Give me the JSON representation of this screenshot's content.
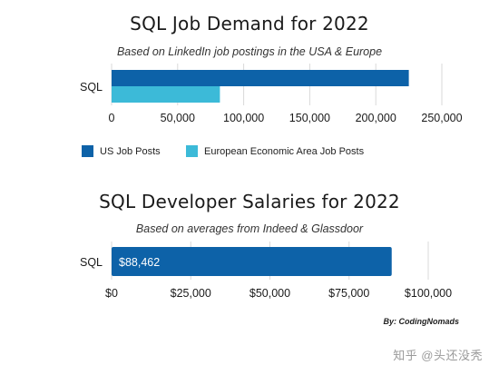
{
  "colors": {
    "us": "#0d62a8",
    "eea": "#3cbad8",
    "grid": "#d9d9d9"
  },
  "chart_data": [
    {
      "type": "bar",
      "orientation": "horizontal",
      "title": "SQL Job Demand for 2022",
      "subtitle": "Based on LinkedIn job postings in the USA & Europe",
      "categories": [
        "SQL"
      ],
      "series": [
        {
          "name": "US Job Posts",
          "values": [
            225000
          ]
        },
        {
          "name": "European Economic Area Job Posts",
          "values": [
            82000
          ]
        }
      ],
      "xlim": [
        0,
        250000
      ],
      "xticks": [
        "0",
        "50,000",
        "100,000",
        "150,000",
        "200,000",
        "250,000"
      ],
      "xtick_values": [
        0,
        50000,
        100000,
        150000,
        200000,
        250000
      ],
      "grid": true,
      "legend": "bottom"
    },
    {
      "type": "bar",
      "orientation": "horizontal",
      "title": "SQL Developer Salaries for 2022",
      "subtitle": "Based on averages from Indeed & Glassdoor",
      "categories": [
        "SQL"
      ],
      "series": [
        {
          "values": [
            88462
          ]
        }
      ],
      "data_labels": [
        "$88,462"
      ],
      "xlim": [
        0,
        100000
      ],
      "xticks": [
        "$0",
        "$25,000",
        "$50,000",
        "$75,000",
        "$100,000"
      ],
      "xtick_values": [
        0,
        25000,
        50000,
        75000,
        100000
      ],
      "grid": true
    }
  ],
  "credit": "By: CodingNomads",
  "watermark": "知乎 @头还没秃"
}
